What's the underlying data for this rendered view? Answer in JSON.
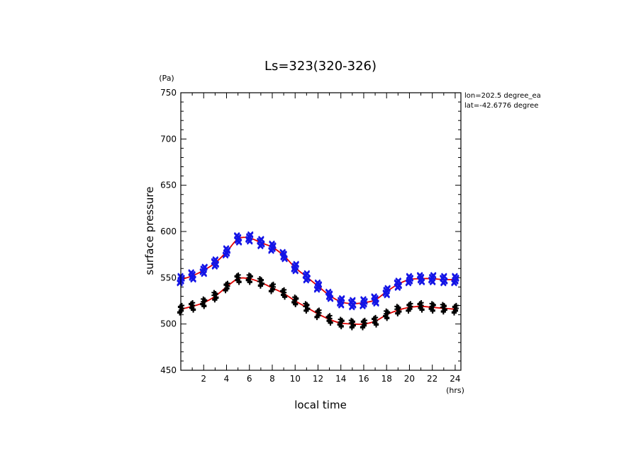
{
  "chart_data": {
    "type": "scatter",
    "title": "Ls=323(320-326)",
    "xlabel": "local time",
    "ylabel": "surface pressure",
    "x_unit": "(hrs)",
    "y_unit": "(Pa)",
    "annotations": [
      "lon=202.5 degree_ea",
      "lat=-42.6776 degree"
    ],
    "xlim": [
      0,
      24.5
    ],
    "ylim": [
      450,
      750
    ],
    "x_ticks": [
      2,
      4,
      6,
      8,
      10,
      12,
      14,
      16,
      18,
      20,
      22,
      24
    ],
    "x_tick_labels": [
      "2",
      "4",
      "6",
      "8",
      "10",
      "12",
      "14",
      "16",
      "18",
      "20",
      "22",
      "24"
    ],
    "y_ticks": [
      450,
      500,
      550,
      600,
      650,
      700,
      750
    ],
    "y_tick_labels": [
      "450",
      "500",
      "550",
      "600",
      "650",
      "700",
      "750"
    ],
    "grid": false,
    "colors": {
      "upper_markers": "#1414e6",
      "lower_markers": "#000000",
      "fit_line": "#e00000"
    },
    "x": [
      0,
      1,
      2,
      3,
      4,
      5,
      6,
      7,
      8,
      9,
      10,
      11,
      12,
      13,
      14,
      15,
      16,
      17,
      18,
      19,
      20,
      21,
      22,
      23,
      24
    ],
    "series": [
      {
        "marker": "x-cross",
        "color": "#1414e6",
        "values": [
          548,
          552,
          558,
          566,
          578,
          592,
          593,
          588,
          583,
          574,
          561,
          551,
          541,
          531,
          524,
          522,
          523,
          526,
          535,
          543,
          548,
          549,
          549,
          548,
          548
        ],
        "scatter": [
          -3,
          3,
          -2,
          2,
          -4,
          4,
          -1,
          1
        ]
      },
      {
        "marker": "plus",
        "color": "#000000",
        "values": [
          516,
          519,
          523,
          530,
          540,
          549,
          549,
          545,
          539,
          533,
          525,
          518,
          511,
          505,
          501,
          500,
          500,
          503,
          510,
          515,
          518,
          519,
          518,
          517,
          516
        ],
        "scatter": [
          -3,
          3,
          -2,
          4,
          -4,
          2,
          -1,
          1
        ]
      }
    ],
    "fit_lines": [
      {
        "color": "#e00000",
        "values": [
          548,
          552,
          558,
          566,
          578,
          592,
          593,
          588,
          583,
          574,
          561,
          551,
          541,
          531,
          524,
          522,
          523,
          526,
          535,
          543,
          548,
          549,
          549,
          548,
          548
        ]
      },
      {
        "color": "#e00000",
        "values": [
          516,
          519,
          523,
          530,
          540,
          549,
          549,
          545,
          539,
          533,
          525,
          518,
          511,
          505,
          501,
          500,
          500,
          503,
          510,
          515,
          518,
          519,
          518,
          517,
          516
        ]
      }
    ]
  }
}
